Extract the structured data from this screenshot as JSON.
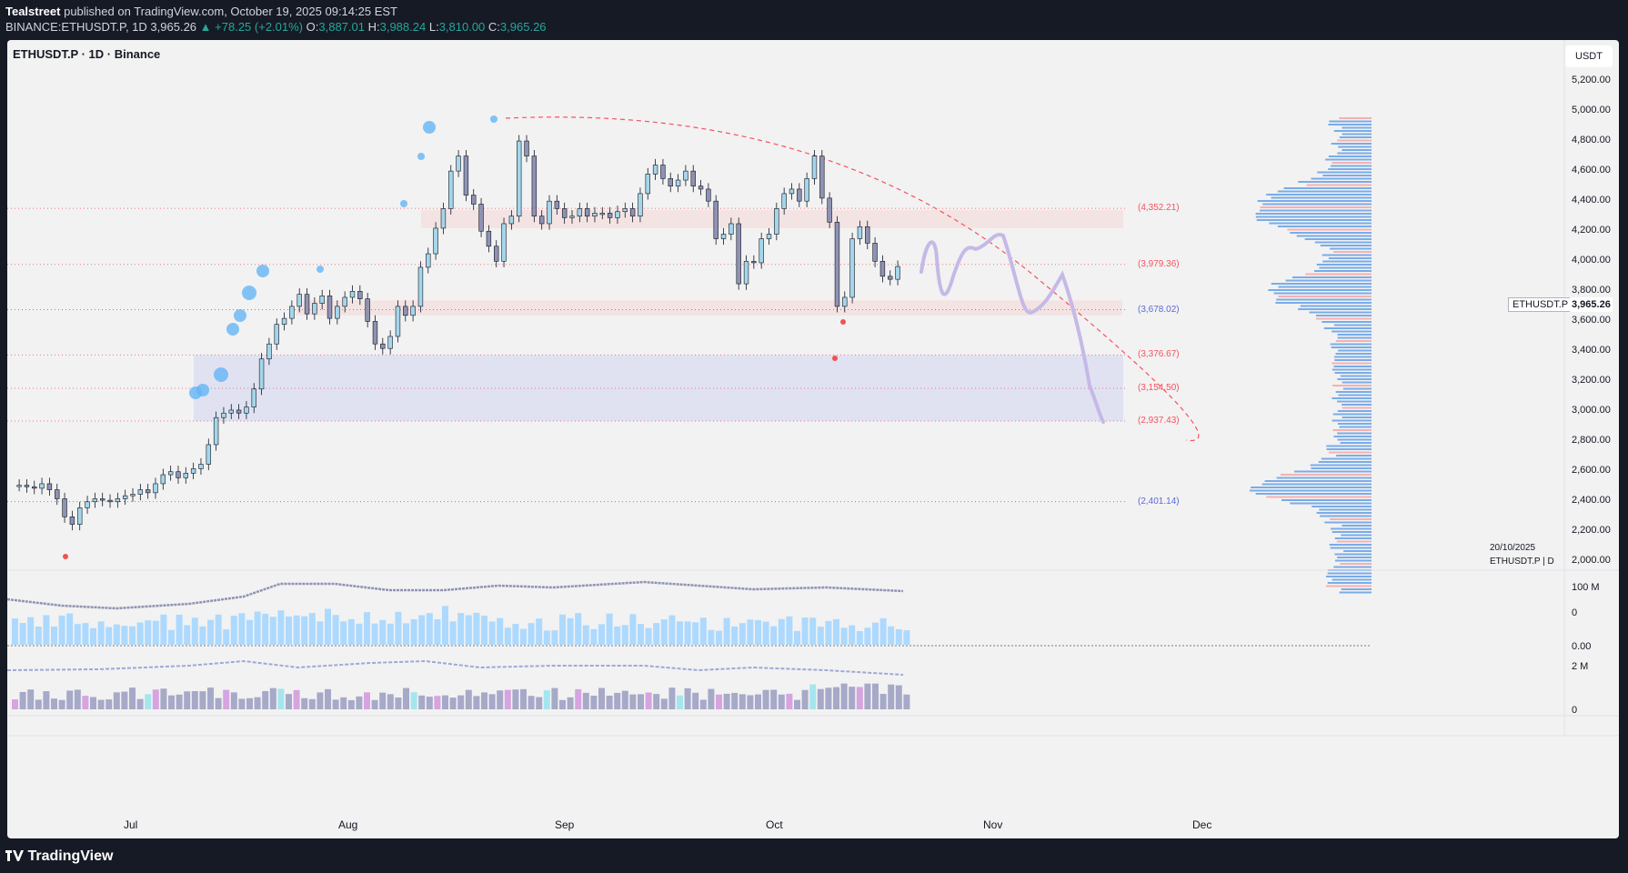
{
  "header": {
    "author": "Tealstreet",
    "published_text": "published on TradingView.com, October 19, 2025 09:14:25 EST",
    "symbol_line": "BINANCE:ETHUSDT.P, 1D",
    "price": "3,965.26",
    "change_arrow": "▲",
    "change": "+78.25 (+2.01%)",
    "open_label": "O:",
    "open": "3,887.01",
    "high_label": "H:",
    "high": "3,988.24",
    "low_label": "L:",
    "low": "3,810.00",
    "close_label": "C:",
    "close": "3,965.26"
  },
  "chart": {
    "symbol_title": "ETHUSDT.P · 1D · Binance",
    "currency": "USDT",
    "y_labels": [
      "5,200.00",
      "5,000.00",
      "4,800.00",
      "4,600.00",
      "4,400.00",
      "4,200.00",
      "4,000.00",
      "3,800.00",
      "3,600.00",
      "3,400.00",
      "3,200.00",
      "3,000.00",
      "2,800.00",
      "2,600.00",
      "2,400.00",
      "2,200.00",
      "2,000.00"
    ],
    "current_price_symbol": "ETHUSDT.P",
    "current_price": "3,965.26",
    "levels": [
      {
        "label": "(4,352.21)",
        "color": "#f7525f"
      },
      {
        "label": "(3,979.36)",
        "color": "#f7525f"
      },
      {
        "label": "(3,678.02)",
        "color": "#5b6bd6"
      },
      {
        "label": "(3,376.67)",
        "color": "#f7525f"
      },
      {
        "label": "(3,154.50)",
        "color": "#f7525f"
      },
      {
        "label": "(2,937.43)",
        "color": "#f7525f"
      },
      {
        "label": "(2,401.14)",
        "color": "#5b6bd6"
      }
    ],
    "volume_labels": [
      "100 M",
      "0"
    ],
    "oscillator_labels": [
      "0.00",
      "2 M",
      "0"
    ],
    "x_labels": [
      "Jul",
      "Aug",
      "Sep",
      "Oct",
      "Nov",
      "Dec"
    ],
    "vp_date": "20/10/2025",
    "vp_symbol": "ETHUSDT.P | D"
  },
  "colors": {
    "bull": "#a5d6ea",
    "bear": "#8f93b3",
    "accent": "#2962ff",
    "projection": "#c5b9e6"
  },
  "footer": {
    "brand": "TradingView"
  }
}
